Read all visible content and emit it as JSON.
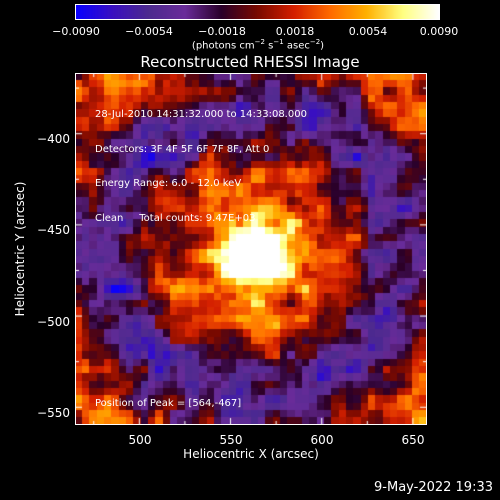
{
  "colorbar": {
    "ticks": [
      "−0.0090",
      "−0.0054",
      "−0.0018",
      "0.0018",
      "0.0054",
      "0.0090"
    ],
    "unit_prefix": "(photons cm",
    "unit_exp1": "−2",
    "unit_mid1": " s",
    "unit_exp2": "−1",
    "unit_mid2": " asec",
    "unit_exp3": "−2",
    "unit_suffix": ")",
    "colors": [
      "#0a00ff",
      "#3a10c0",
      "#4d2a8f",
      "#6a2c9a",
      "#2a002a",
      "#7a0a00",
      "#d42000",
      "#ff6a00",
      "#ffb000",
      "#ffff80",
      "#ffffff"
    ]
  },
  "title": "Reconstructed RHESSI Image",
  "info": {
    "line1": "28-Jul-2010 14:31:32.000 to 14:33:08.000",
    "line2": "Detectors: 3F 4F 5F 6F 7F 8F, Att 0",
    "line3": "Energy Range: 6.0 - 12.0 keV",
    "line4": "Clean     Total counts: 9.47E+03"
  },
  "peak": "Position of Peak = [564,-467]",
  "axes": {
    "xlabel": "Heliocentric X (arcsec)",
    "ylabel": "Heliocentric Y (arcsec)",
    "xticks": [
      "500",
      "550",
      "600",
      "650"
    ],
    "yticks": [
      "−400",
      "−450",
      "−500",
      "−550"
    ],
    "xrange": [
      465,
      658
    ],
    "yrange": [
      -560,
      -367
    ]
  },
  "image": {
    "grid": 48,
    "peak_position": [
      564,
      -467
    ]
  },
  "footer": {
    "date": "9-May-2022 19:33"
  }
}
